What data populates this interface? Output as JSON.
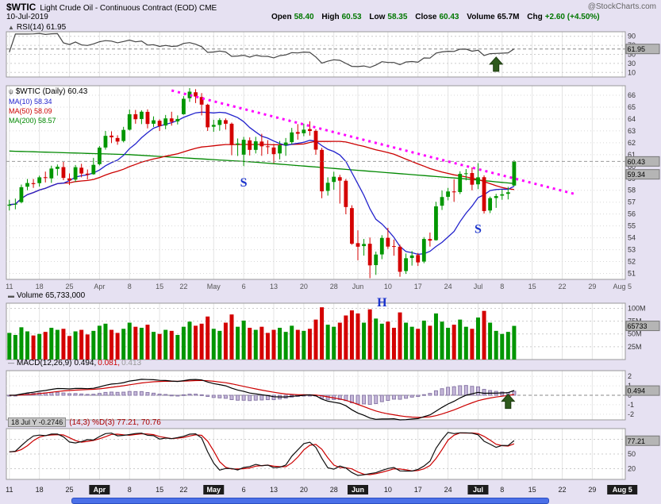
{
  "header": {
    "symbol": "$WTIC",
    "description": "Light Crude Oil - Continuous Contract (EOD) CME",
    "watermark": "@StockCharts.com",
    "date": "10-Jul-2019",
    "quote": {
      "open_label": "Open",
      "open": "58.40",
      "high_label": "High",
      "high": "60.53",
      "low_label": "Low",
      "low": "58.35",
      "close_label": "Close",
      "close": "60.43",
      "volume_label": "Volume",
      "volume": "65.7M",
      "chg_label": "Chg",
      "chg": "+2.60 (+4.50%)"
    }
  },
  "panels": {
    "rsi": {
      "icon": "▲",
      "label": "RSI(14) 61.95"
    },
    "price": {
      "icon": "ψ",
      "title": "$WTIC (Daily) 60.43",
      "ma10": "MA(10) 58.34",
      "ma50": "MA(50) 58.09",
      "ma200": "MA(200) 58.57"
    },
    "volume": {
      "icon": "▬",
      "label": "Volume 65,733,000"
    },
    "macd": {
      "icon": "―",
      "label": "MACD(12,26,9)",
      "value_macd": "0.494,",
      "value_signal": "0.081,",
      "value_hist": "0.413"
    },
    "stoch": {
      "tooltip": "18 Jul Y -0.2746",
      "label": "(14,3) %D(3) 77.21, 70.76"
    }
  },
  "colors": {
    "up": "#009600",
    "down": "#d40000",
    "ma10": "#2222cc",
    "ma50": "#cc0000",
    "ma200": "#008800",
    "rsi": "#444444",
    "macd_line": "#000000",
    "macd_signal": "#cc0000",
    "macd_hist_fill": "#c6b8da",
    "macd_hist_stroke": "#8a7aa8",
    "stoch_k": "#111111",
    "stoch_d": "#cc0000",
    "trendline": "#ff00ff",
    "arrow": "#2e5a1c",
    "annotation_text": "#1a33cc",
    "last_box_bg": "#b5b5b5"
  },
  "chart_data": {
    "type": "candlestick",
    "symbol": "$WTIC",
    "period": "daily",
    "total_slots": 103,
    "week_start_indices": [
      0,
      5,
      10,
      15,
      20,
      25,
      29,
      34,
      39,
      44,
      49,
      54,
      58,
      63,
      68,
      73,
      78,
      82,
      87,
      92,
      97,
      102
    ],
    "x_axis": [
      {
        "i": 0,
        "t": "11"
      },
      {
        "i": 5,
        "t": "18"
      },
      {
        "i": 10,
        "t": "25"
      },
      {
        "i": 15,
        "t": "Apr",
        "m": true
      },
      {
        "i": 20,
        "t": "8"
      },
      {
        "i": 25,
        "t": "15"
      },
      {
        "i": 29,
        "t": "22"
      },
      {
        "i": 34,
        "t": "May",
        "m": true
      },
      {
        "i": 39,
        "t": "6"
      },
      {
        "i": 44,
        "t": "13"
      },
      {
        "i": 49,
        "t": "20"
      },
      {
        "i": 54,
        "t": "28"
      },
      {
        "i": 58,
        "t": "Jun",
        "m": true
      },
      {
        "i": 63,
        "t": "10"
      },
      {
        "i": 68,
        "t": "17"
      },
      {
        "i": 73,
        "t": "24"
      },
      {
        "i": 78,
        "t": "Jul",
        "m": true
      },
      {
        "i": 82,
        "t": "8"
      },
      {
        "i": 87,
        "t": "15"
      },
      {
        "i": 92,
        "t": "22"
      },
      {
        "i": 97,
        "t": "29"
      },
      {
        "i": 102,
        "t": "Aug 5",
        "m": true
      }
    ],
    "dates": [
      "2019-03-11",
      "2019-03-12",
      "2019-03-13",
      "2019-03-14",
      "2019-03-15",
      "2019-03-18",
      "2019-03-19",
      "2019-03-20",
      "2019-03-21",
      "2019-03-22",
      "2019-03-25",
      "2019-03-26",
      "2019-03-27",
      "2019-03-28",
      "2019-03-29",
      "2019-04-01",
      "2019-04-02",
      "2019-04-03",
      "2019-04-04",
      "2019-04-05",
      "2019-04-08",
      "2019-04-09",
      "2019-04-10",
      "2019-04-11",
      "2019-04-12",
      "2019-04-15",
      "2019-04-16",
      "2019-04-17",
      "2019-04-18",
      "2019-04-22",
      "2019-04-23",
      "2019-04-24",
      "2019-04-25",
      "2019-04-26",
      "2019-04-29",
      "2019-04-30",
      "2019-05-01",
      "2019-05-02",
      "2019-05-03",
      "2019-05-06",
      "2019-05-07",
      "2019-05-08",
      "2019-05-09",
      "2019-05-10",
      "2019-05-13",
      "2019-05-14",
      "2019-05-15",
      "2019-05-16",
      "2019-05-17",
      "2019-05-20",
      "2019-05-21",
      "2019-05-22",
      "2019-05-23",
      "2019-05-24",
      "2019-05-28",
      "2019-05-29",
      "2019-05-30",
      "2019-05-31",
      "2019-06-03",
      "2019-06-04",
      "2019-06-05",
      "2019-06-06",
      "2019-06-07",
      "2019-06-10",
      "2019-06-11",
      "2019-06-12",
      "2019-06-13",
      "2019-06-14",
      "2019-06-17",
      "2019-06-18",
      "2019-06-19",
      "2019-06-20",
      "2019-06-21",
      "2019-06-24",
      "2019-06-25",
      "2019-06-26",
      "2019-06-27",
      "2019-06-28",
      "2019-07-01",
      "2019-07-02",
      "2019-07-03",
      "2019-07-05",
      "2019-07-08",
      "2019-07-09",
      "2019-07-10"
    ],
    "ohlc": [
      [
        56.7,
        57.2,
        56.3,
        56.79
      ],
      [
        56.8,
        57.3,
        56.4,
        56.87
      ],
      [
        57.0,
        58.48,
        56.9,
        58.26
      ],
      [
        58.3,
        58.95,
        58.0,
        58.61
      ],
      [
        58.6,
        58.95,
        58.2,
        58.52
      ],
      [
        58.6,
        59.23,
        58.31,
        59.09
      ],
      [
        59.1,
        59.57,
        58.66,
        59.03
      ],
      [
        59.0,
        60.07,
        58.62,
        59.83
      ],
      [
        59.8,
        60.17,
        59.23,
        59.98
      ],
      [
        59.95,
        60.39,
        58.85,
        59.04
      ],
      [
        59.0,
        59.42,
        58.44,
        58.82
      ],
      [
        58.9,
        60.13,
        58.7,
        59.94
      ],
      [
        59.9,
        60.23,
        59.09,
        59.41
      ],
      [
        59.4,
        59.75,
        58.92,
        59.3
      ],
      [
        59.35,
        60.73,
        59.31,
        60.14
      ],
      [
        60.2,
        61.72,
        60.09,
        61.59
      ],
      [
        61.6,
        62.99,
        61.42,
        62.58
      ],
      [
        62.6,
        62.96,
        61.97,
        62.46
      ],
      [
        62.4,
        62.63,
        61.83,
        62.1
      ],
      [
        62.15,
        63.34,
        62.03,
        63.08
      ],
      [
        63.1,
        64.79,
        63.03,
        64.4
      ],
      [
        64.4,
        64.76,
        63.6,
        63.98
      ],
      [
        64.0,
        64.74,
        63.57,
        64.61
      ],
      [
        64.6,
        64.81,
        63.21,
        63.58
      ],
      [
        63.6,
        64.22,
        63.33,
        63.89
      ],
      [
        63.85,
        63.97,
        62.99,
        63.4
      ],
      [
        63.45,
        64.34,
        63.14,
        64.05
      ],
      [
        64.05,
        64.61,
        63.44,
        63.76
      ],
      [
        63.8,
        64.3,
        63.54,
        64.0
      ],
      [
        64.4,
        65.92,
        64.36,
        65.7
      ],
      [
        65.75,
        66.6,
        65.44,
        66.3
      ],
      [
        66.25,
        66.51,
        65.34,
        65.89
      ],
      [
        65.85,
        66.18,
        64.3,
        65.21
      ],
      [
        65.2,
        65.28,
        62.99,
        63.3
      ],
      [
        63.35,
        63.93,
        62.92,
        63.5
      ],
      [
        63.5,
        64.07,
        63.01,
        63.91
      ],
      [
        63.9,
        64.05,
        63.11,
        63.6
      ],
      [
        63.6,
        63.7,
        60.95,
        61.81
      ],
      [
        61.85,
        62.36,
        60.89,
        61.94
      ],
      [
        61.0,
        62.49,
        60.04,
        62.25
      ],
      [
        62.2,
        62.45,
        60.93,
        61.4
      ],
      [
        61.4,
        62.5,
        61.1,
        62.12
      ],
      [
        62.1,
        62.75,
        60.9,
        61.7
      ],
      [
        61.7,
        62.22,
        61.05,
        61.66
      ],
      [
        61.6,
        61.9,
        60.29,
        61.04
      ],
      [
        61.1,
        62.15,
        60.6,
        61.78
      ],
      [
        61.8,
        62.4,
        60.9,
        62.02
      ],
      [
        62.05,
        63.25,
        61.87,
        62.87
      ],
      [
        62.9,
        63.57,
        62.26,
        62.76
      ],
      [
        62.8,
        63.6,
        62.55,
        63.1
      ],
      [
        63.15,
        63.81,
        62.6,
        62.99
      ],
      [
        63.0,
        63.14,
        60.99,
        61.42
      ],
      [
        61.4,
        61.57,
        57.33,
        57.91
      ],
      [
        57.95,
        59.09,
        57.55,
        58.63
      ],
      [
        58.7,
        59.56,
        58.04,
        59.14
      ],
      [
        59.1,
        59.3,
        56.88,
        58.81
      ],
      [
        58.8,
        58.95,
        55.98,
        56.59
      ],
      [
        56.5,
        56.74,
        53.41,
        53.5
      ],
      [
        53.55,
        54.63,
        52.11,
        53.25
      ],
      [
        53.3,
        53.9,
        52.5,
        53.48
      ],
      [
        53.5,
        54.03,
        50.6,
        51.68
      ],
      [
        51.7,
        52.84,
        50.88,
        52.59
      ],
      [
        52.6,
        54.22,
        52.2,
        53.99
      ],
      [
        54.0,
        54.84,
        53.06,
        53.26
      ],
      [
        53.3,
        53.85,
        52.49,
        53.27
      ],
      [
        53.25,
        53.42,
        50.72,
        51.14
      ],
      [
        51.2,
        52.68,
        50.96,
        52.28
      ],
      [
        52.3,
        52.89,
        51.66,
        52.51
      ],
      [
        52.55,
        52.72,
        51.63,
        51.93
      ],
      [
        52.0,
        54.06,
        51.86,
        53.9
      ],
      [
        53.9,
        54.44,
        53.26,
        53.76
      ],
      [
        53.8,
        57.03,
        53.76,
        56.65
      ],
      [
        56.7,
        57.98,
        56.34,
        57.43
      ],
      [
        57.45,
        58.2,
        57.15,
        57.9
      ],
      [
        57.9,
        58.93,
        57.03,
        57.83
      ],
      [
        57.85,
        59.6,
        57.68,
        59.38
      ],
      [
        59.4,
        59.78,
        58.83,
        59.43
      ],
      [
        59.45,
        59.93,
        57.99,
        58.47
      ],
      [
        58.5,
        60.28,
        58.1,
        59.09
      ],
      [
        59.1,
        59.26,
        56.04,
        56.25
      ],
      [
        56.3,
        57.47,
        56.08,
        57.34
      ],
      [
        57.35,
        57.7,
        56.52,
        57.51
      ],
      [
        57.55,
        58.08,
        57.2,
        57.66
      ],
      [
        57.7,
        58.29,
        57.23,
        57.83
      ],
      [
        58.4,
        60.53,
        58.35,
        60.43
      ]
    ],
    "volume_millions": [
      52,
      48,
      63,
      55,
      47,
      50,
      54,
      62,
      58,
      60,
      46,
      55,
      58,
      49,
      56,
      66,
      70,
      58,
      52,
      60,
      72,
      64,
      62,
      68,
      54,
      50,
      58,
      56,
      48,
      64,
      74,
      66,
      70,
      84,
      60,
      56,
      72,
      88,
      64,
      76,
      62,
      58,
      64,
      52,
      58,
      62,
      54,
      66,
      58,
      56,
      60,
      78,
      102,
      68,
      64,
      72,
      86,
      96,
      90,
      72,
      98,
      80,
      70,
      74,
      62,
      92,
      72,
      64,
      60,
      76,
      66,
      90,
      74,
      62,
      68,
      78,
      64,
      60,
      82,
      95,
      72,
      56,
      50,
      54,
      65.733
    ],
    "ma200_anchors": [
      [
        0,
        61.3
      ],
      [
        20,
        61.0
      ],
      [
        40,
        60.4
      ],
      [
        60,
        59.6
      ],
      [
        75,
        59.0
      ],
      [
        84,
        58.57
      ]
    ],
    "trendline": {
      "i1": 27,
      "p1": 66.4,
      "i2": 94,
      "p2": 57.7
    },
    "annotations": [
      {
        "panel": "price",
        "type": "text",
        "text": "S",
        "i": 39,
        "value": 58.3
      },
      {
        "panel": "price",
        "type": "text",
        "text": "S",
        "i": 78,
        "value": 54.4
      },
      {
        "panel": "volume",
        "type": "text",
        "text": "H",
        "i": 62,
        "value": 104
      },
      {
        "panel": "rsi",
        "type": "arrow-up",
        "i": 81,
        "value": 44
      },
      {
        "panel": "macd",
        "type": "arrow-up",
        "i": 83,
        "value": 0.12
      }
    ],
    "axes": {
      "rsi": {
        "ticks": [
          90,
          70,
          50,
          30,
          10
        ],
        "last": 61.95,
        "last_label": "61.95"
      },
      "price": {
        "ticks": [
          66,
          65,
          64,
          63,
          62,
          61,
          60,
          59,
          58,
          57,
          56,
          55,
          54,
          53,
          52,
          51
        ],
        "last": 60.43,
        "last_label": "60.43",
        "trend_last": 59.34,
        "trend_last_label": "59.34"
      },
      "volume": {
        "ticks": [
          [
            100,
            "100M"
          ],
          [
            75,
            "75M"
          ],
          [
            50,
            "50M"
          ],
          [
            25,
            "25M"
          ]
        ],
        "last": 65.733,
        "last_label": "65733"
      },
      "macd": {
        "ticks": [
          2,
          1,
          0,
          -1,
          -2
        ],
        "last": 0.494,
        "last_label": "0.494"
      },
      "stoch": {
        "ticks": [
          80,
          50,
          20
        ],
        "last": 77.21,
        "last_label": "77.21"
      }
    },
    "indicator_params": {
      "rsi": "RSI(14)",
      "ma": [
        10,
        50,
        200
      ],
      "macd": [
        12,
        26,
        9
      ],
      "stoch": "Full STO %K(14,3) %D(3)"
    }
  }
}
